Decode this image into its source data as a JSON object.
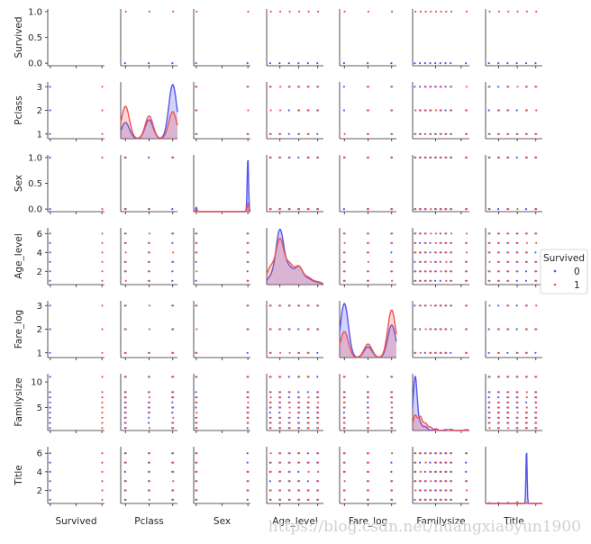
{
  "chart_data": {
    "type": "scatter",
    "variables": [
      "Survived",
      "Pclass",
      "Sex",
      "Age_level",
      "Fare_log",
      "Familysize",
      "Title"
    ],
    "legend": {
      "title": "Survived",
      "entries": [
        {
          "label": "0",
          "color": "#5555ee"
        },
        {
          "label": "1",
          "color": "#ee5555"
        }
      ],
      "placement": "right"
    },
    "ranges": {
      "Survived": {
        "lim": [
          -0.05,
          1.05
        ],
        "ticks": [
          0.0,
          0.5,
          1.0
        ],
        "tick_labels": [
          "0.0",
          "0.5",
          "1.0"
        ]
      },
      "Pclass": {
        "lim": [
          0.8,
          3.2
        ],
        "ticks": [
          1,
          2,
          3
        ],
        "tick_labels": [
          "1",
          "2",
          "3"
        ]
      },
      "Sex": {
        "lim": [
          -0.05,
          1.05
        ],
        "ticks": [
          0.0,
          0.5,
          1.0
        ],
        "tick_labels": [
          "0.0",
          "0.5",
          "1.0"
        ]
      },
      "Age_level": {
        "lim": [
          0.6,
          6.6
        ],
        "ticks": [
          2,
          4,
          6
        ],
        "tick_labels": [
          "2",
          "4",
          "6"
        ]
      },
      "Fare_log": {
        "lim": [
          0.8,
          3.2
        ],
        "ticks": [
          1,
          2,
          3
        ],
        "tick_labels": [
          "1",
          "2",
          "3"
        ]
      },
      "Familysize": {
        "lim": [
          0.5,
          11.6
        ],
        "ticks": [
          5,
          10
        ],
        "tick_labels": [
          "5",
          "10"
        ]
      },
      "Title": {
        "lim": [
          0.6,
          6.7
        ],
        "ticks": [
          2,
          4,
          6
        ],
        "tick_labels": [
          "2",
          "4",
          "6"
        ]
      }
    },
    "values": {
      "Survived": [
        0,
        1
      ],
      "Pclass": [
        1,
        2,
        3
      ],
      "Sex": [
        0,
        1
      ],
      "Age_level": [
        1,
        2,
        3,
        4,
        5,
        6
      ],
      "Fare_log": [
        1,
        2,
        3
      ],
      "Familysize": [
        1,
        2,
        3,
        4,
        5,
        6,
        7,
        8,
        11
      ],
      "Title": [
        1,
        2,
        3,
        4,
        5,
        6
      ]
    },
    "diagonal_kde": {
      "Pclass": {
        "0": [
          [
            1,
            0.3
          ],
          [
            2,
            0.35
          ],
          [
            3,
            1.0
          ]
        ],
        "1": [
          [
            1,
            0.6
          ],
          [
            2,
            0.42
          ],
          [
            3,
            0.5
          ]
        ]
      },
      "Sex": {
        "0": [
          [
            0,
            0.08
          ],
          [
            1,
            1.0
          ]
        ],
        "1": [
          [
            0,
            0.04
          ],
          [
            1,
            0.16
          ]
        ]
      },
      "Age_level": {
        "0": [
          [
            1,
            0.12
          ],
          [
            2,
            1.0
          ],
          [
            3,
            0.28
          ],
          [
            4,
            0.32
          ],
          [
            5,
            0.1
          ],
          [
            6,
            0.04
          ]
        ],
        "1": [
          [
            1,
            0.3
          ],
          [
            2,
            0.82
          ],
          [
            3,
            0.35
          ],
          [
            4,
            0.32
          ],
          [
            5,
            0.12
          ],
          [
            6,
            0.05
          ]
        ]
      },
      "Fare_log": {
        "0": [
          [
            1,
            1.0
          ],
          [
            2,
            0.2
          ],
          [
            3,
            0.6
          ]
        ],
        "1": [
          [
            1,
            0.48
          ],
          [
            2,
            0.25
          ],
          [
            3,
            0.88
          ]
        ]
      },
      "Familysize": {
        "0": [
          [
            1,
            1.0
          ],
          [
            2,
            0.12
          ],
          [
            3,
            0.07
          ],
          [
            5,
            0.03
          ],
          [
            8,
            0.02
          ],
          [
            11,
            0.015
          ]
        ],
        "1": [
          [
            1,
            0.28
          ],
          [
            2,
            0.25
          ],
          [
            3,
            0.13
          ],
          [
            4,
            0.06
          ],
          [
            7,
            0.02
          ]
        ]
      },
      "Title": {
        "0": [
          [
            5,
            1.0
          ]
        ],
        "1": [
          [
            1,
            0.015
          ],
          [
            2,
            0.02
          ],
          [
            3,
            0.02
          ],
          [
            4,
            0.03
          ],
          [
            5,
            0.01
          ]
        ]
      }
    }
  },
  "watermark": "https://blog.csdn.net/huangxiaoyun1900"
}
